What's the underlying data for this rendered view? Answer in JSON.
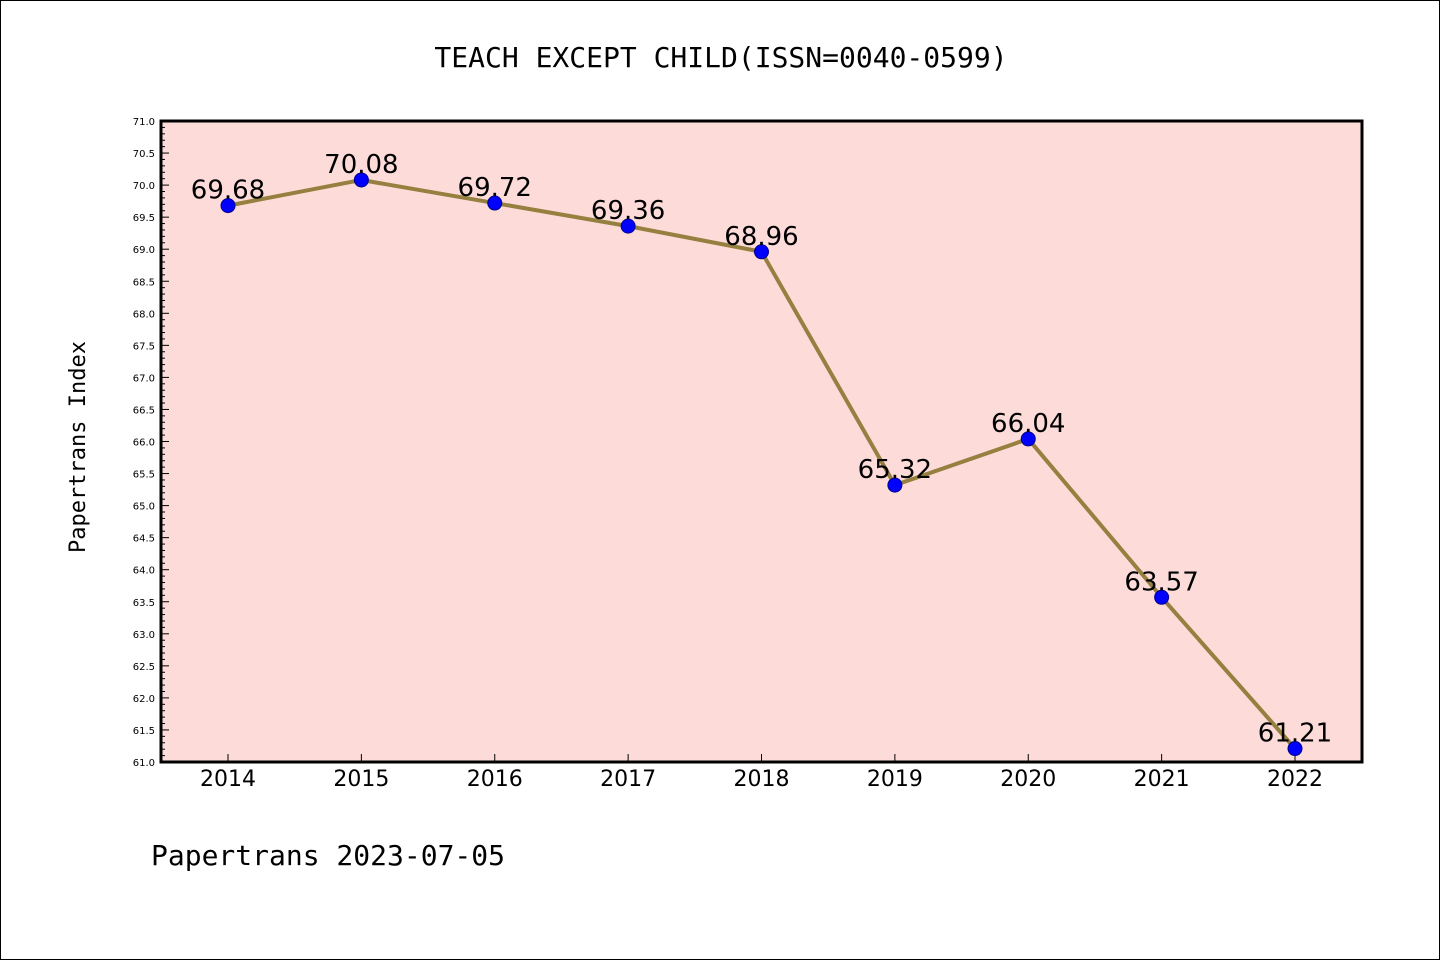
{
  "chart_data": {
    "type": "line",
    "title": "TEACH EXCEPT CHILD(ISSN=0040-0599)",
    "xlabel": "",
    "ylabel": "Papertrans Index",
    "categories": [
      "2014",
      "2015",
      "2016",
      "2017",
      "2018",
      "2019",
      "2020",
      "2021",
      "2022"
    ],
    "series": [
      {
        "values": [
          69.68,
          70.08,
          69.72,
          69.36,
          68.96,
          65.32,
          66.04,
          63.57,
          61.21
        ],
        "data_labels": [
          "69.68",
          "70.08",
          "69.72",
          "69.36",
          "68.96",
          "65.32",
          "66.04",
          "63.57",
          "61.21"
        ]
      }
    ],
    "ylim": [
      61.0,
      71.0
    ],
    "yticks": [
      "61.0",
      "61.5",
      "62.0",
      "62.5",
      "63.0",
      "63.5",
      "64.0",
      "64.5",
      "65.0",
      "65.5",
      "66.0",
      "66.5",
      "67.0",
      "67.5",
      "68.0",
      "68.5",
      "69.0",
      "69.5",
      "70.0",
      "70.5",
      "71.0"
    ],
    "grid": false,
    "colors": {
      "plot_background": "#fddbd9",
      "line": "#958040",
      "marker": "#0000ff",
      "marker_edge": "#00008b"
    }
  },
  "footer": {
    "text": "Papertrans 2023-07-05"
  }
}
